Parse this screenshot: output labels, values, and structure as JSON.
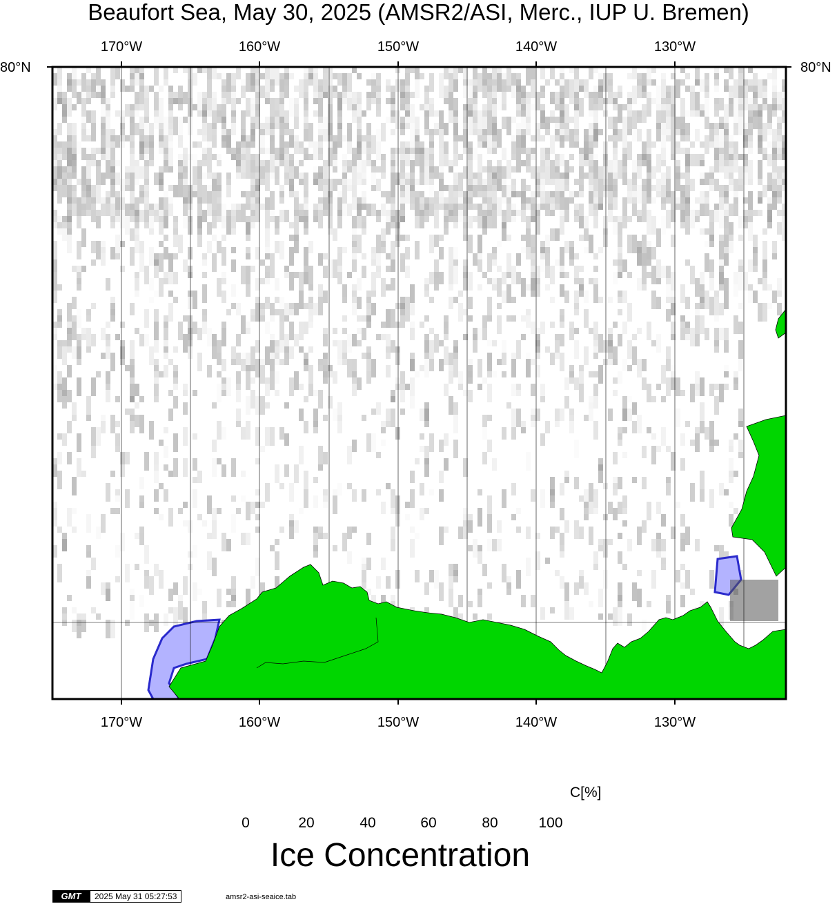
{
  "title": "Beaufort Sea, May 30, 2025 (AMSR2/ASI, Merc., IUP U. Bremen)",
  "map": {
    "lon_labels": [
      "170°W",
      "160°W",
      "150°W",
      "140°W",
      "130°W"
    ],
    "lat_labels_left": [
      "80°N"
    ],
    "lat_labels_right": [
      "80°N"
    ],
    "colors": {
      "land": "#00d600",
      "coast": "#000000",
      "low_ice": "#b3b3ff",
      "gridline": "#000000"
    }
  },
  "colorbar": {
    "ticks": [
      "0",
      "20",
      "40",
      "60",
      "80",
      "100"
    ],
    "unit": "C[%]",
    "title": "Ice Concentration",
    "stops": [
      "#7d7dff",
      "#1a1aa0",
      "#000000",
      "#6e6e6e",
      "#ffffff"
    ]
  },
  "footer": {
    "logo": "GMT",
    "timestamp": "2025 May 31 05:27:53",
    "filename": "amsr2-asi-seaice.tab"
  }
}
